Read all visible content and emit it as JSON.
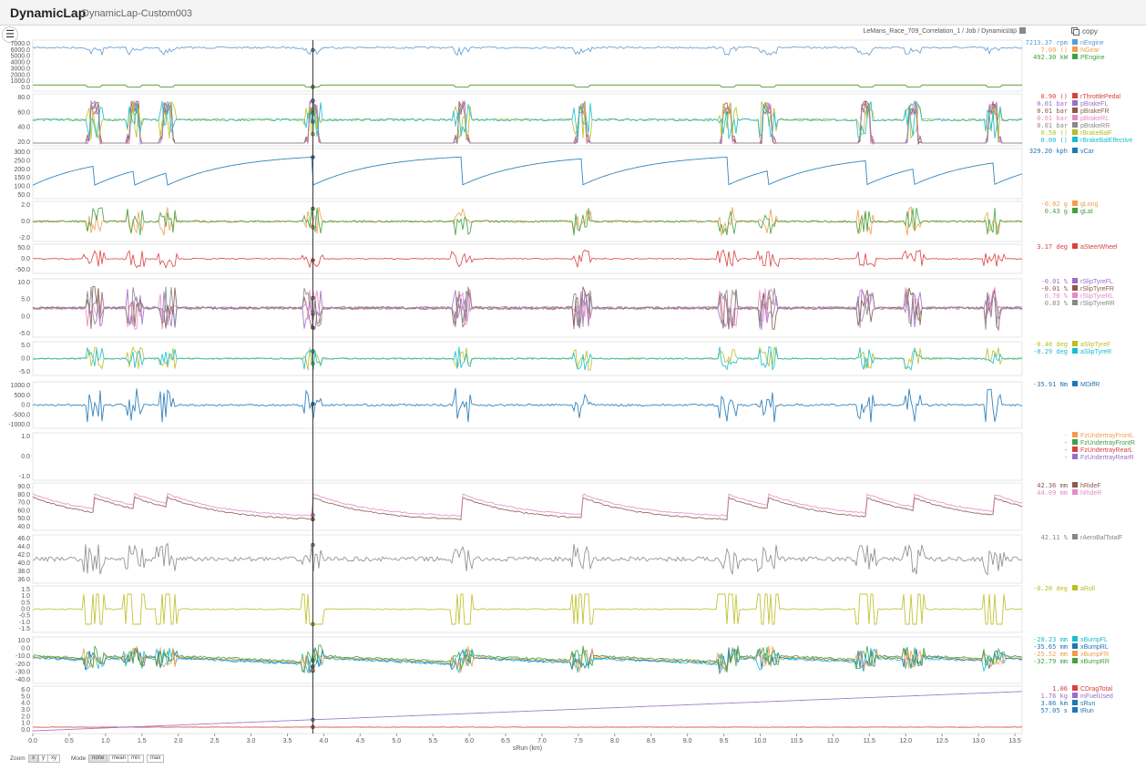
{
  "app": {
    "title": "DynamicLap",
    "document": "DynamicLap-Custom003"
  },
  "toolbar": {
    "menu_icon": "hamburger-icon",
    "breadcrumb": "LeMans_Race_709_Correlation_1 / Job / DynamicLap",
    "copy_label": "copy",
    "copy_icon": "copy-icon"
  },
  "x_axis": {
    "label": "sRun (km)",
    "ticks": [
      "0.0",
      "0.5",
      "1.0",
      "1.5",
      "2.0",
      "2.5",
      "3.0",
      "3.5",
      "4.0",
      "4.5",
      "5.0",
      "5.5",
      "6.0",
      "6.5",
      "7.0",
      "7.5",
      "8.0",
      "8.5",
      "9.0",
      "9.5",
      "10.0",
      "10.5",
      "11.0",
      "11.5",
      "12.0",
      "12.5",
      "13.0",
      "13.5"
    ],
    "range": [
      0,
      13.6
    ],
    "cursor": 3.85
  },
  "panels": [
    {
      "yticks": [
        "7000.0",
        "6000.0",
        "5000.0",
        "4000.0",
        "3000.0",
        "2000.0",
        "1000.0",
        "0.0"
      ],
      "channels": [
        {
          "value": "7213.37 rpm",
          "name": "nEngine",
          "color": "#5b9bd5"
        },
        {
          "value": "7.00 ()",
          "name": "NGear",
          "color": "#f39c4e"
        },
        {
          "value": "492.30 kW",
          "name": "PEngine",
          "color": "#3fa33f"
        }
      ]
    },
    {
      "yticks": [
        "80.0",
        "60.0",
        "40.0",
        "20.0"
      ],
      "channels": [
        {
          "value": "0.90 ()",
          "name": "rThrottlePedal",
          "color": "#d94040"
        },
        {
          "value": "0.01 bar",
          "name": "pBrakeFL",
          "color": "#9b6fc4"
        },
        {
          "value": "0.01 bar",
          "name": "pBrakeFR",
          "color": "#8c5a4a"
        },
        {
          "value": "0.01 bar",
          "name": "pBrakeRL",
          "color": "#e58ac8"
        },
        {
          "value": "0.01 bar",
          "name": "pBrakeRR",
          "color": "#888888"
        },
        {
          "value": "0.58 ()",
          "name": "rBrakeBalF",
          "color": "#bcbd22"
        },
        {
          "value": "0.00 ()",
          "name": "rBrakeBalEffective",
          "color": "#17becf"
        }
      ]
    },
    {
      "yticks": [
        "300.0",
        "250.0",
        "200.0",
        "150.0",
        "100.0",
        "50.0"
      ],
      "channels": [
        {
          "value": "329.20 kph",
          "name": "vCar",
          "color": "#1f77b4"
        }
      ]
    },
    {
      "yticks": [
        "2.0",
        "0.0",
        "-2.0"
      ],
      "channels": [
        {
          "value": "-0.02 g",
          "name": "gLong",
          "color": "#f39c4e"
        },
        {
          "value": "0.43 g",
          "name": "gLat",
          "color": "#3fa33f"
        }
      ]
    },
    {
      "yticks": [
        "50.0",
        "0.0",
        "-50.0"
      ],
      "channels": [
        {
          "value": "3.17 deg",
          "name": "aSteerWheel",
          "color": "#d94040"
        }
      ]
    },
    {
      "yticks": [
        "10.0",
        "5.0",
        "0.0",
        "-5.0"
      ],
      "channels": [
        {
          "value": "-0.01 %",
          "name": "rSlipTyreFL",
          "color": "#9b6fc4"
        },
        {
          "value": "-0.01 %",
          "name": "rSlipTyreFR",
          "color": "#8c5a4a"
        },
        {
          "value": "0.70 %",
          "name": "rSlipTyreRL",
          "color": "#e58ac8"
        },
        {
          "value": "0.83 %",
          "name": "rSlipTyreRR",
          "color": "#888888"
        }
      ]
    },
    {
      "yticks": [
        "5.0",
        "0.0",
        "-5.0"
      ],
      "channels": [
        {
          "value": "-0.40 deg",
          "name": "aSlipTyreF",
          "color": "#bcbd22"
        },
        {
          "value": "-0.29 deg",
          "name": "aSlipTyreR",
          "color": "#17becf"
        }
      ]
    },
    {
      "yticks": [
        "1000.0",
        "500.0",
        "0.0",
        "-500.0",
        "-1000.0"
      ],
      "channels": [
        {
          "value": "-35.91 Nm",
          "name": "MDiffR",
          "color": "#1f77b4"
        }
      ]
    },
    {
      "yticks": [
        "1.0",
        "0.0",
        "-1.0"
      ],
      "channels": [
        {
          "value": "-",
          "name": "FzUndertrayFrontL",
          "color": "#f39c4e"
        },
        {
          "value": "-",
          "name": "FzUndertrayFrontR",
          "color": "#3fa33f"
        },
        {
          "value": "-",
          "name": "FzUndertrayRearL",
          "color": "#d94040"
        },
        {
          "value": "-",
          "name": "FzUndertrayRearR",
          "color": "#9b6fc4"
        }
      ]
    },
    {
      "yticks": [
        "90.0",
        "80.0",
        "70.0",
        "60.0",
        "50.0",
        "40.0"
      ],
      "channels": [
        {
          "value": "42.36 mm",
          "name": "hRideF",
          "color": "#8c5a4a"
        },
        {
          "value": "44.09 mm",
          "name": "hRideR",
          "color": "#e58ac8"
        }
      ]
    },
    {
      "yticks": [
        "46.0",
        "44.0",
        "42.0",
        "40.0",
        "38.0",
        "36.0"
      ],
      "channels": [
        {
          "value": "42.11 %",
          "name": "rAeroBalTotalF",
          "color": "#888888"
        }
      ]
    },
    {
      "yticks": [
        "1.5",
        "1.0",
        "0.5",
        "0.0",
        "-0.5",
        "-1.0",
        "-1.5"
      ],
      "channels": [
        {
          "value": "-0.20 deg",
          "name": "aRoll",
          "color": "#bcbd22"
        }
      ]
    },
    {
      "yticks": [
        "10.0",
        "0.0",
        "-10.0",
        "-20.0",
        "-30.0",
        "-40.0"
      ],
      "channels": [
        {
          "value": "-20.23 mm",
          "name": "xBumpFL",
          "color": "#17becf"
        },
        {
          "value": "-35.65 mm",
          "name": "xBumpRL",
          "color": "#1f77b4"
        },
        {
          "value": "-25.52 mm",
          "name": "xBumpFR",
          "color": "#f39c4e"
        },
        {
          "value": "-32.79 mm",
          "name": "xBumpRR",
          "color": "#3fa33f"
        }
      ]
    },
    {
      "yticks": [
        "6.0",
        "5.0",
        "4.0",
        "3.0",
        "2.0",
        "1.0",
        "0.0"
      ],
      "channels": [
        {
          "value": "1.06",
          "name": "CDragTotal",
          "color": "#d94040"
        },
        {
          "value": "1.76 kg",
          "name": "mFuelUsed",
          "color": "#9b6fc4"
        },
        {
          "value": "3.86 km",
          "name": "sRun",
          "color": "#1f77b4"
        },
        {
          "value": "57.05 s",
          "name": "tRun",
          "color": "#1f77b4"
        }
      ]
    }
  ],
  "footer": {
    "zoom_label": "Zoom",
    "zoom_options": [
      "x",
      "y",
      "xy"
    ],
    "zoom_selected": "x",
    "mode_label": "Mode",
    "mode_options": [
      "none",
      "mean",
      "min",
      "max"
    ],
    "mode_selected": "none"
  }
}
